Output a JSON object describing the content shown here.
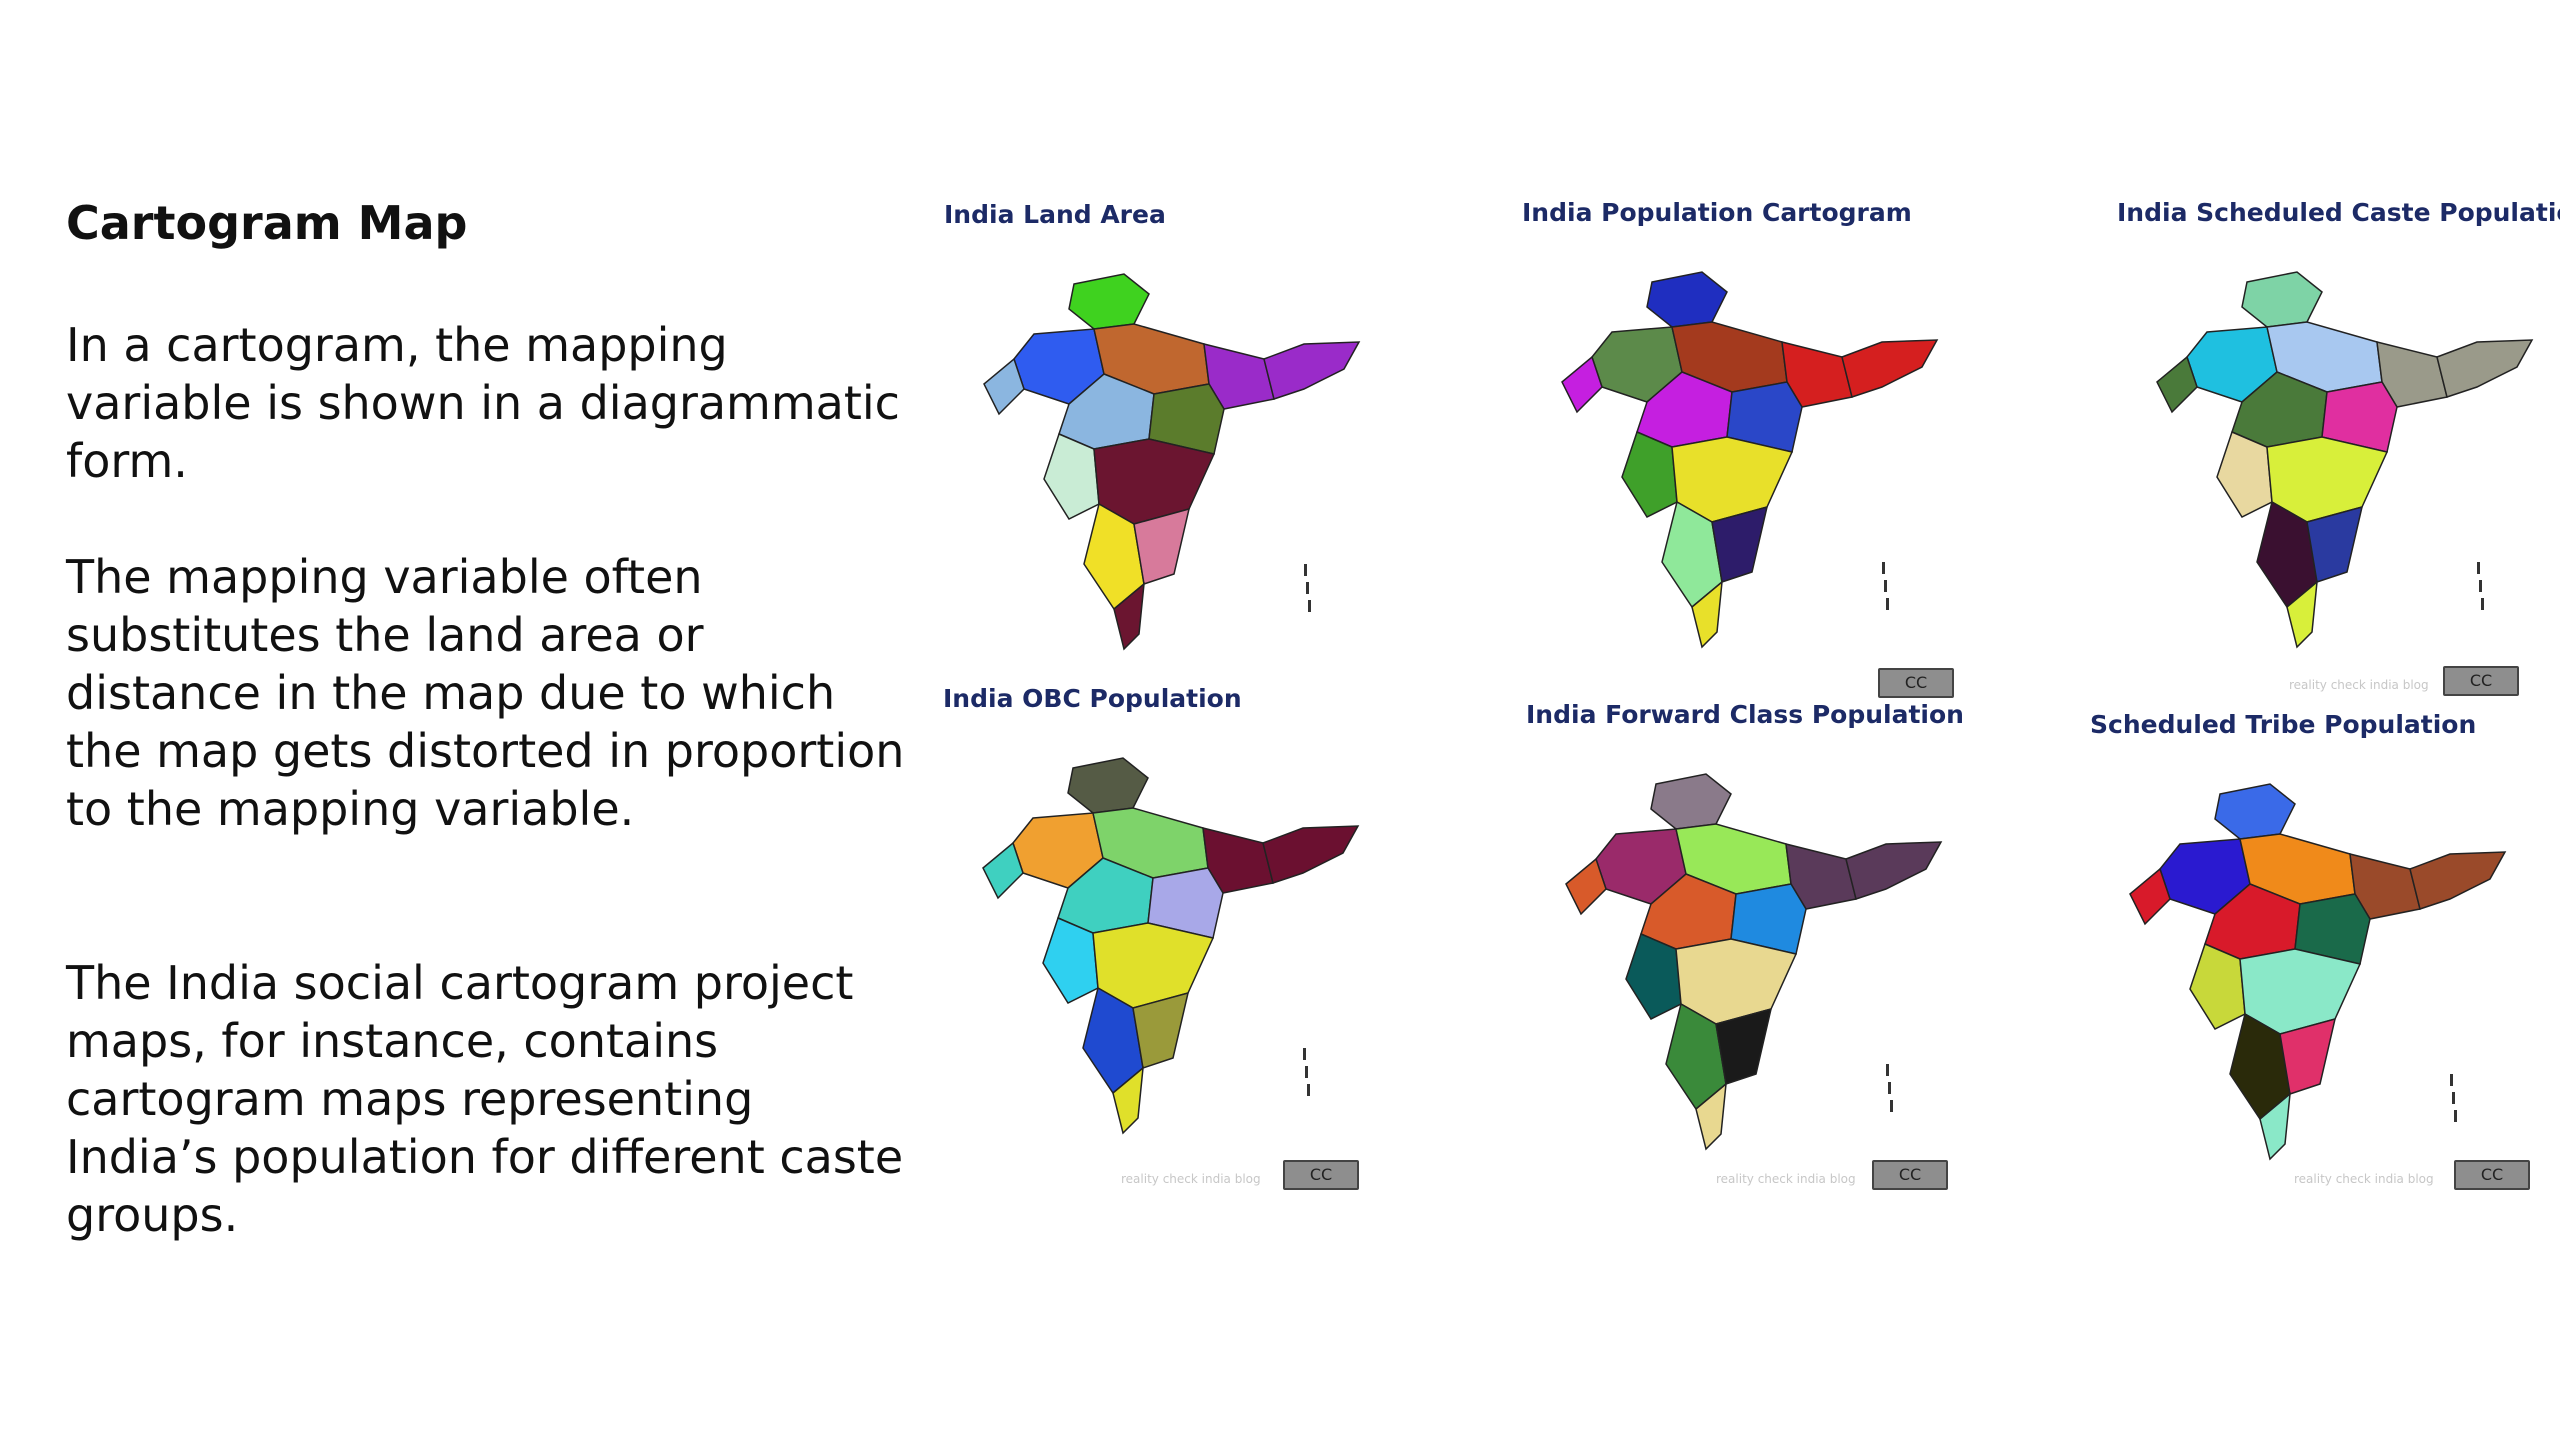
{
  "slide": {
    "title": "Cartogram Map",
    "paragraphs": [
      "In a cartogram, the mapping variable is shown in a diagrammatic form.",
      "The mapping variable often substitutes the land area or distance in the map due to which the map gets distorted in proportion to the mapping variable.",
      "The India social cartogram project maps, for instance, contains cartogram maps representing India’s population for different caste groups."
    ]
  },
  "maps": [
    {
      "title": "India Land Area",
      "credit": "",
      "colors": [
        "#3fd21f",
        "#2f5cf0",
        "#c0672f",
        "#9a2bc9",
        "#8bb6e0",
        "#5b7c2c",
        "#c9ecd5",
        "#6b1530",
        "#f0e027",
        "#d77a9b"
      ]
    },
    {
      "title": "India Population Cartogram",
      "credit": "",
      "colors": [
        "#1f2ec0",
        "#5c8a4a",
        "#a43a1e",
        "#d51f1f",
        "#c51fe0",
        "#2a47c8",
        "#3fa02a",
        "#e8e02a",
        "#8fe89a",
        "#2d1c6a"
      ]
    },
    {
      "title": "India Scheduled Caste Population",
      "credit": "reality check india blog",
      "colors": [
        "#7ed3a6",
        "#1fc0e0",
        "#a8c8f0",
        "#9a9a8a",
        "#4a7a3a",
        "#e02fa0",
        "#e8d8a0",
        "#d8ef3a",
        "#3a1030",
        "#2a3aa0"
      ]
    },
    {
      "title": "India OBC Population",
      "credit": "reality check india blog",
      "colors": [
        "#555b45",
        "#f0a030",
        "#7ed36a",
        "#6b1030",
        "#3fd0c0",
        "#a8a8e8",
        "#2fd0f0",
        "#e0e02a",
        "#1f4ad0",
        "#9a9a3a"
      ]
    },
    {
      "title": "India Forward Class Population",
      "credit": "reality check india blog",
      "colors": [
        "#8a7a8a",
        "#9a2a6a",
        "#98e858",
        "#5a3a5a",
        "#d85a2a",
        "#1f8ae0",
        "#0a5a5a",
        "#e8d890",
        "#3a8a3a",
        "#1a1a1a"
      ]
    },
    {
      "title": "Scheduled Tribe Population",
      "credit": "reality check india blog",
      "colors": [
        "#3a6ae8",
        "#2a1ad0",
        "#f08a1a",
        "#9a4a2a",
        "#d81a2a",
        "#1a6a4a",
        "#c8d83a",
        "#8ae8c8",
        "#2a2a0a",
        "#e0306a"
      ]
    }
  ],
  "badge_label": "CC"
}
